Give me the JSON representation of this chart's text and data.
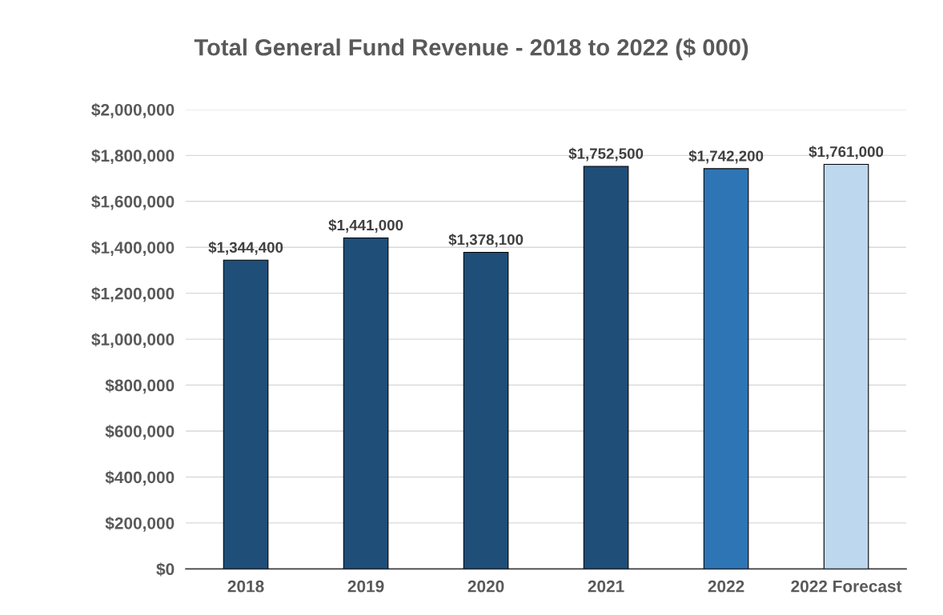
{
  "chart_data": {
    "type": "bar",
    "title": "Total General Fund Revenue - 2018 to 2022 ($ 000)",
    "categories": [
      "2018",
      "2019",
      "2020",
      "2021",
      "2022",
      "2022 Forecast"
    ],
    "values": [
      1344400,
      1441000,
      1378100,
      1752500,
      1742200,
      1761000
    ],
    "colors": [
      "#1f4e79",
      "#1f4e79",
      "#1f4e79",
      "#1f4e79",
      "#2e75b6",
      "#bdd7ee"
    ],
    "value_labels": [
      "$1,344,400",
      "$1,441,000",
      "$1,378,100",
      "$1,752,500",
      "$1,742,200",
      "$1,761,000"
    ],
    "ylim": [
      0,
      2000000
    ],
    "yticks": [
      {
        "value": 0,
        "label": "$0"
      },
      {
        "value": 200000,
        "label": "$200,000"
      },
      {
        "value": 400000,
        "label": "$400,000"
      },
      {
        "value": 600000,
        "label": "$600,000"
      },
      {
        "value": 800000,
        "label": "$800,000"
      },
      {
        "value": 1000000,
        "label": "$1,000,000"
      },
      {
        "value": 1200000,
        "label": "$1,200,000"
      },
      {
        "value": 1400000,
        "label": "$1,400,000"
      },
      {
        "value": 1600000,
        "label": "$1,600,000"
      },
      {
        "value": 1800000,
        "label": "$1,800,000"
      },
      {
        "value": 2000000,
        "label": "$2,000,000"
      }
    ],
    "grid": "y",
    "legend": false
  }
}
